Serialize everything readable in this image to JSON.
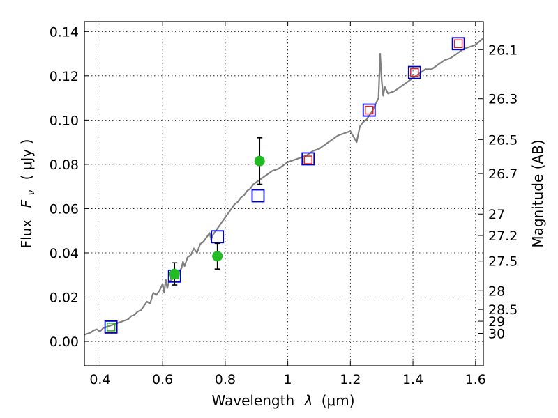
{
  "chart_data": {
    "type": "scatter",
    "xlabel_text": "Wavelength",
    "xlabel_symbol": "λ",
    "xlabel_unit": "(μm)",
    "ylabel_text": "Flux",
    "ylabel_symbol": "F",
    "ylabel_sub": "ν",
    "ylabel_unit": "( μJy )",
    "y2label": "Magnitude (AB)",
    "xlim": [
      0.35,
      1.625
    ],
    "ylim": [
      -0.011,
      0.1445
    ],
    "grid": true,
    "x_ticks": [
      0.4,
      0.6,
      0.8,
      1.0,
      1.2,
      1.4,
      1.6
    ],
    "x_tick_labels": [
      "0.4",
      "0.6",
      "0.8",
      "1",
      "1.2",
      "1.4",
      "1.6"
    ],
    "y_ticks": [
      0.0,
      0.02,
      0.04,
      0.06,
      0.08,
      0.1,
      0.12,
      0.14
    ],
    "y_tick_labels": [
      "0.00",
      "0.02",
      "0.04",
      "0.06",
      "0.08",
      "0.10",
      "0.12",
      "0.14"
    ],
    "mag_ticks": [
      26.1,
      26.3,
      26.5,
      26.7,
      27,
      27.2,
      27.5,
      28,
      28.5,
      29,
      30
    ],
    "mag_tick_labels": [
      "26.1",
      "26.3",
      "26.5",
      "26.7",
      "27",
      "27.2",
      "27.5",
      "28",
      "28.5",
      "29",
      "30"
    ],
    "colors": {
      "spectrum": "#808080",
      "model_squares": "#0000cc",
      "observed_points": "#22bb22",
      "observed_squares_green": "#22aa22",
      "observed_squares_red": "#dd2222",
      "errorbar": "#000000"
    },
    "spectrum": {
      "x": [
        0.35,
        0.36,
        0.37,
        0.38,
        0.39,
        0.4,
        0.41,
        0.42,
        0.43,
        0.44,
        0.45,
        0.46,
        0.47,
        0.48,
        0.49,
        0.5,
        0.51,
        0.52,
        0.53,
        0.54,
        0.55,
        0.56,
        0.57,
        0.58,
        0.59,
        0.6,
        0.605,
        0.61,
        0.615,
        0.62,
        0.63,
        0.64,
        0.65,
        0.66,
        0.665,
        0.67,
        0.68,
        0.69,
        0.7,
        0.71,
        0.72,
        0.73,
        0.74,
        0.75,
        0.755,
        0.76,
        0.77,
        0.78,
        0.79,
        0.8,
        0.81,
        0.82,
        0.83,
        0.84,
        0.85,
        0.86,
        0.87,
        0.88,
        0.89,
        0.9,
        0.91,
        0.92,
        0.93,
        0.94,
        0.95,
        0.96,
        0.97,
        0.98,
        0.99,
        1.0,
        1.02,
        1.04,
        1.06,
        1.08,
        1.1,
        1.12,
        1.14,
        1.16,
        1.18,
        1.2,
        1.22,
        1.23,
        1.24,
        1.25,
        1.26,
        1.27,
        1.28,
        1.29,
        1.295,
        1.3,
        1.305,
        1.31,
        1.32,
        1.34,
        1.36,
        1.38,
        1.4,
        1.42,
        1.44,
        1.46,
        1.48,
        1.5,
        1.52,
        1.54,
        1.56,
        1.58,
        1.6,
        1.625
      ],
      "y": [
        0.003,
        0.0035,
        0.004,
        0.005,
        0.0055,
        0.0045,
        0.006,
        0.0065,
        0.007,
        0.0075,
        0.008,
        0.0085,
        0.009,
        0.0095,
        0.01,
        0.0115,
        0.012,
        0.0135,
        0.014,
        0.016,
        0.018,
        0.017,
        0.022,
        0.021,
        0.023,
        0.026,
        0.022,
        0.028,
        0.024,
        0.027,
        0.028,
        0.029,
        0.031,
        0.033,
        0.036,
        0.034,
        0.038,
        0.039,
        0.042,
        0.04,
        0.044,
        0.045,
        0.047,
        0.049,
        0.046,
        0.048,
        0.05,
        0.052,
        0.054,
        0.056,
        0.058,
        0.06,
        0.062,
        0.063,
        0.065,
        0.066,
        0.068,
        0.069,
        0.071,
        0.072,
        0.073,
        0.074,
        0.075,
        0.076,
        0.077,
        0.0775,
        0.078,
        0.079,
        0.08,
        0.081,
        0.082,
        0.083,
        0.084,
        0.086,
        0.087,
        0.089,
        0.091,
        0.093,
        0.094,
        0.095,
        0.09,
        0.097,
        0.099,
        0.1,
        0.102,
        0.104,
        0.107,
        0.11,
        0.13,
        0.118,
        0.111,
        0.115,
        0.112,
        0.113,
        0.115,
        0.117,
        0.119,
        0.121,
        0.123,
        0.123,
        0.125,
        0.127,
        0.128,
        0.13,
        0.132,
        0.133,
        0.134,
        0.137
      ]
    },
    "model_squares": {
      "x": [
        0.435,
        0.638,
        0.775,
        0.905,
        1.065,
        1.26,
        1.405,
        1.545
      ],
      "y": [
        0.0065,
        0.0295,
        0.0473,
        0.0658,
        0.0825,
        0.1045,
        0.1215,
        0.1345
      ]
    },
    "observed_squares": {
      "x": [
        0.435,
        0.638,
        1.065,
        1.26,
        1.405,
        1.545
      ],
      "y": [
        0.0065,
        0.03,
        0.082,
        0.1045,
        0.1215,
        0.1345
      ],
      "colors": [
        "green",
        "green",
        "red",
        "red",
        "red",
        "red"
      ]
    },
    "observed_points": {
      "x": [
        0.638,
        0.775,
        0.91
      ],
      "y": [
        0.0305,
        0.0385,
        0.0815
      ],
      "yerr": [
        0.005,
        0.0058,
        0.0105
      ]
    }
  }
}
